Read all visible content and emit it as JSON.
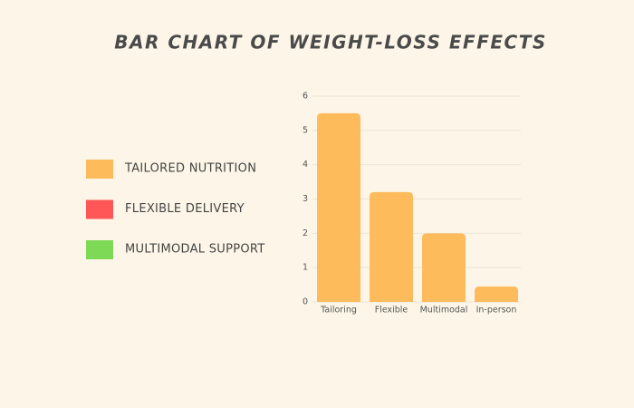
{
  "chart_data": {
    "type": "bar",
    "title": "BAR CHART OF WEIGHT-LOSS EFFECTS",
    "categories": [
      "Tailoring",
      "Flexible",
      "Multimodal",
      "In-person"
    ],
    "values": [
      5.5,
      3.2,
      2.0,
      0.45
    ],
    "color": "#fdbb5c",
    "ylim": [
      0,
      6
    ],
    "yticks": [
      0,
      1,
      2,
      3,
      4,
      5,
      6
    ],
    "grid": true,
    "legend": [
      {
        "name": "TAILORED NUTRITION",
        "color": "#fdbb5c"
      },
      {
        "name": "FLEXIBLE DELIVERY",
        "color": "#ff5757"
      },
      {
        "name": "MULTIMODAL SUPPORT",
        "color": "#7ed957"
      }
    ]
  }
}
